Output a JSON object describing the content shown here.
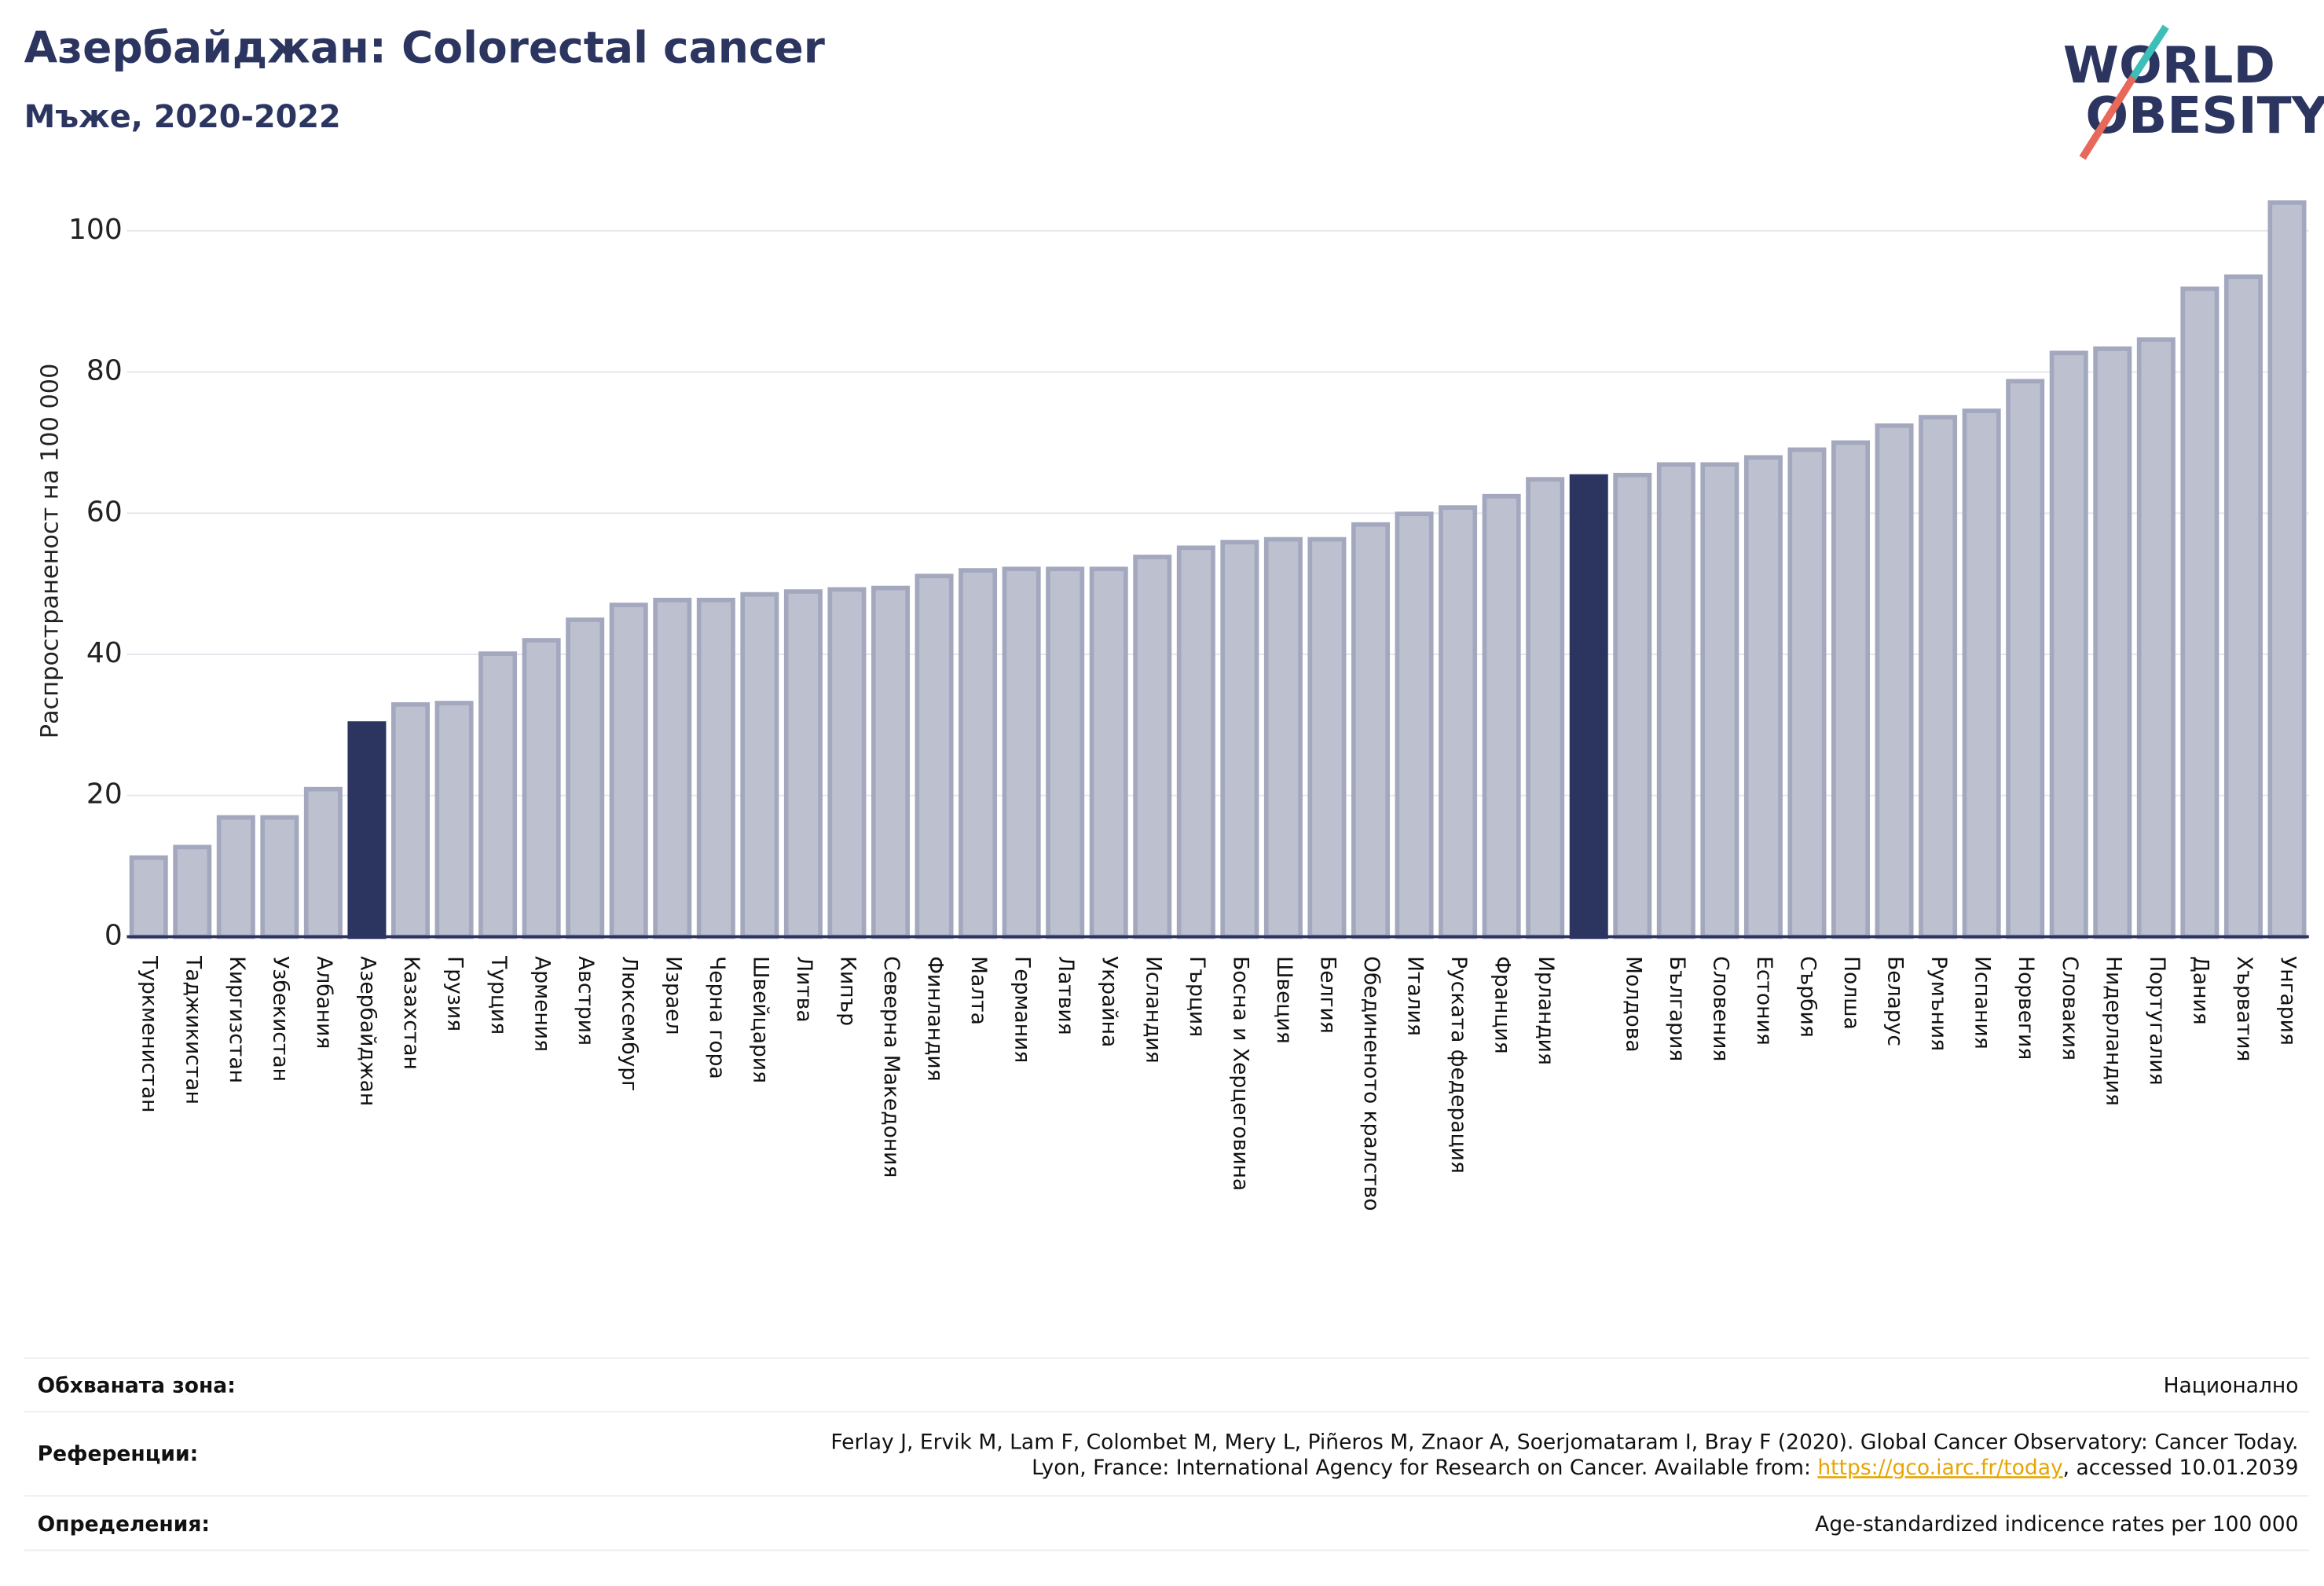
{
  "chart_data": {
    "type": "bar",
    "title": "Азербайджан: Colorectal cancer",
    "subtitle": "Мъже, 2020-2022",
    "y_label": "Распространеност  на 100 000",
    "logo": [
      "WORLD",
      "OBESITY"
    ],
    "categories": [
      "Туркменистан",
      "Таджикистан",
      "Киргизстан",
      "Узбекистан",
      "Албания",
      "Азербайджан",
      "Казахстан",
      "Грузия",
      "Турция",
      "Армения",
      "Австрия",
      "Люксембург",
      "Израел",
      "Черна гора",
      "Швейцария",
      "Литва",
      "Кипър",
      "Северна Македония",
      "Финландия",
      "Малта",
      "Германия",
      "Латвия",
      "Украйна",
      "Исландия",
      "Гърция",
      "Босна и Херцеговина",
      "Швеция",
      "Белгия",
      "Обединеното кралство",
      "Италия",
      "Руската федерация",
      "Франция",
      "Ирландия",
      null,
      "Молдова",
      "България",
      "Словения",
      "Естония",
      "Сърбия",
      "Полша",
      "Беларус",
      "Румъния",
      "Испания",
      "Норвегия",
      "Словакия",
      "Нидерландия",
      "Португалия",
      "Дания",
      "Хърватия",
      "Унгария"
    ],
    "values": [
      11.2,
      12.7,
      16.9,
      16.9,
      20.9,
      30.2,
      32.9,
      33.1,
      40.1,
      42.0,
      44.9,
      47.0,
      47.7,
      47.7,
      48.5,
      48.9,
      49.2,
      49.4,
      51.1,
      51.9,
      52.1,
      52.1,
      52.1,
      53.8,
      55.1,
      55.9,
      56.3,
      56.3,
      58.4,
      59.9,
      60.8,
      62.4,
      64.8,
      65.2,
      65.4,
      66.9,
      66.9,
      67.9,
      69.0,
      70.0,
      72.4,
      73.6,
      74.5,
      78.7,
      82.7,
      83.3,
      84.6,
      91.8,
      93.5,
      104.0
    ],
    "color": "#bcc0cf",
    "highlight_color": "#2b3560",
    "highlight": [
      5,
      33
    ],
    "ylim": [
      0,
      106
    ],
    "yticks": [
      0,
      20,
      40,
      60,
      80,
      100
    ],
    "grid": true
  },
  "footer": {
    "rows": [
      {
        "label": "Обхваната зона:",
        "text": [
          "Национално"
        ]
      },
      {
        "label": "Референции:",
        "text": [
          "Ferlay J, Ervik M, Lam F, Colombet M, Mery L, Piñeros M, Znaor A, Soerjomataram I, Bray F (2020). Global Cancer Observatory: Cancer Today.",
          "Lyon, France: International Agency for Research on Cancer. Available from: ",
          "https://gco.iarc.fr/today",
          ", accessed 10.01.2039"
        ]
      },
      {
        "label": "Определения:",
        "text": [
          "Age-standardized indicence rates per 100 000"
        ]
      }
    ]
  }
}
